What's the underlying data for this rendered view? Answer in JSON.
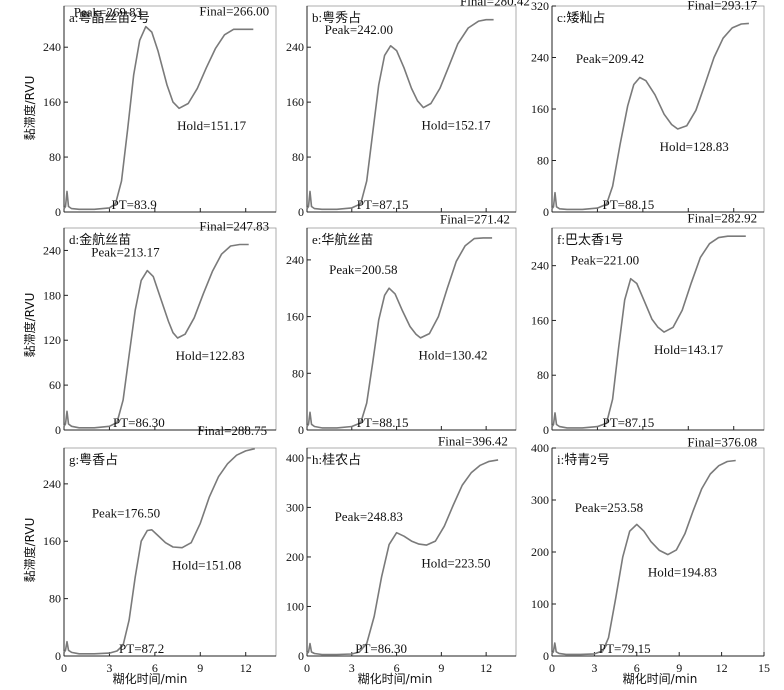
{
  "figure": {
    "ylabel": "黏滞度/RVU",
    "xlabel": "糊化时间/min",
    "x_ticks": [
      "0",
      "3",
      "6",
      "9",
      "12",
      "15"
    ],
    "line_color": "#7a7a7a"
  },
  "chart_data": [
    {
      "type": "line",
      "title": "a:粤晶丝苗2号",
      "xlim": [
        0,
        14
      ],
      "ylim": [
        0,
        300
      ],
      "yticks": [
        0,
        80,
        160,
        240
      ],
      "pt": 83.9,
      "pt_time": 3.4,
      "peak": 269.83,
      "peak_time": 5.4,
      "hold": 151.17,
      "hold_time": 7.6,
      "final": 266.0,
      "labels": {
        "peak": "Peak=269.83",
        "hold": "Hold=151.17",
        "final": "Final=266.00",
        "pt": "PT=83.9"
      },
      "x": [
        0,
        0.1,
        0.2,
        0.3,
        0.5,
        1,
        2,
        3,
        3.4,
        3.8,
        4.2,
        4.6,
        5.0,
        5.4,
        5.8,
        6.2,
        6.8,
        7.2,
        7.6,
        8.2,
        8.8,
        9.4,
        10.0,
        10.6,
        11.2,
        11.6,
        12.0,
        12.5
      ],
      "y": [
        5,
        8,
        30,
        8,
        5,
        4,
        4,
        6,
        12,
        45,
        120,
        200,
        250,
        270,
        262,
        235,
        185,
        160,
        151,
        158,
        180,
        210,
        238,
        258,
        266,
        266,
        266,
        266
      ]
    },
    {
      "type": "line",
      "title": "b:粤秀占",
      "xlim": [
        0,
        14
      ],
      "ylim": [
        0,
        300
      ],
      "yticks": [
        0,
        80,
        160,
        240
      ],
      "pt": 87.15,
      "pt_time": 3.6,
      "peak": 242.0,
      "peak_time": 5.6,
      "hold": 152.17,
      "hold_time": 7.8,
      "final": 280.42,
      "labels": {
        "peak": "Peak=242.00",
        "hold": "Hold=152.17",
        "final": "Final=280.42",
        "pt": "PT=87.15"
      },
      "x": [
        0,
        0.1,
        0.2,
        0.3,
        0.5,
        1,
        2,
        3,
        3.6,
        4.0,
        4.4,
        4.8,
        5.2,
        5.6,
        6.0,
        6.5,
        7.0,
        7.4,
        7.8,
        8.3,
        8.9,
        9.5,
        10.1,
        10.8,
        11.5,
        12.0,
        12.5
      ],
      "y": [
        5,
        8,
        30,
        8,
        5,
        4,
        4,
        6,
        12,
        45,
        115,
        185,
        228,
        242,
        235,
        210,
        180,
        162,
        152,
        158,
        180,
        212,
        245,
        268,
        278,
        280,
        280
      ]
    },
    {
      "type": "line",
      "title": "c:矮籼占",
      "xlim": [
        0,
        14
      ],
      "ylim": [
        0,
        320
      ],
      "yticks": [
        0,
        80,
        160,
        240,
        320
      ],
      "pt": 88.15,
      "pt_time": 3.6,
      "peak": 209.42,
      "peak_time": 5.8,
      "hold": 128.83,
      "hold_time": 8.3,
      "final": 293.17,
      "labels": {
        "peak": "Peak=209.42",
        "hold": "Hold=128.83",
        "final": "Final=293.17",
        "pt": "PT=88.15"
      },
      "x": [
        0,
        0.1,
        0.2,
        0.3,
        0.5,
        1,
        2,
        3,
        3.6,
        4.0,
        4.5,
        5.0,
        5.4,
        5.8,
        6.2,
        6.8,
        7.4,
        7.9,
        8.3,
        8.9,
        9.5,
        10.1,
        10.7,
        11.3,
        11.9,
        12.5,
        13.0
      ],
      "y": [
        5,
        8,
        30,
        8,
        5,
        4,
        4,
        6,
        12,
        40,
        105,
        165,
        198,
        209,
        204,
        182,
        152,
        136,
        129,
        134,
        158,
        198,
        240,
        270,
        286,
        292,
        293
      ]
    },
    {
      "type": "line",
      "title": "d:金航丝苗",
      "xlim": [
        0,
        14
      ],
      "ylim": [
        0,
        270
      ],
      "yticks": [
        0,
        60,
        120,
        180,
        240
      ],
      "pt": 86.3,
      "pt_time": 3.5,
      "peak": 213.17,
      "peak_time": 5.5,
      "hold": 122.83,
      "hold_time": 7.5,
      "final": 247.83,
      "labels": {
        "peak": "Peak=213.17",
        "hold": "Hold=122.83",
        "final": "Final=247.83",
        "pt": "PT=86.30"
      },
      "x": [
        0,
        0.1,
        0.2,
        0.3,
        0.5,
        1,
        2,
        3,
        3.5,
        3.9,
        4.3,
        4.7,
        5.1,
        5.5,
        5.9,
        6.4,
        6.9,
        7.2,
        7.5,
        8.0,
        8.6,
        9.2,
        9.8,
        10.4,
        11.0,
        11.6,
        12.2
      ],
      "y": [
        5,
        8,
        25,
        8,
        5,
        3,
        3,
        5,
        10,
        40,
        100,
        160,
        200,
        213,
        205,
        175,
        145,
        130,
        123,
        128,
        150,
        182,
        212,
        235,
        246,
        248,
        248
      ]
    },
    {
      "type": "line",
      "title": "e:华航丝苗",
      "xlim": [
        0,
        14
      ],
      "ylim": [
        0,
        285
      ],
      "yticks": [
        0,
        80,
        160,
        240
      ],
      "pt": 88.15,
      "pt_time": 3.6,
      "peak": 200.58,
      "peak_time": 5.5,
      "hold": 130.42,
      "hold_time": 7.6,
      "final": 271.42,
      "labels": {
        "peak": "Peak=200.58",
        "hold": "Hold=130.42",
        "final": "Final=271.42",
        "pt": "PT=88.15"
      },
      "x": [
        0,
        0.1,
        0.2,
        0.3,
        0.5,
        1,
        2,
        3,
        3.6,
        4.0,
        4.4,
        4.8,
        5.2,
        5.5,
        5.9,
        6.4,
        6.9,
        7.3,
        7.6,
        8.2,
        8.8,
        9.4,
        10.0,
        10.6,
        11.2,
        11.8,
        12.4
      ],
      "y": [
        5,
        8,
        25,
        8,
        5,
        3,
        3,
        5,
        10,
        38,
        95,
        155,
        190,
        200,
        192,
        168,
        146,
        135,
        130,
        136,
        160,
        200,
        238,
        260,
        270,
        271,
        271
      ]
    },
    {
      "type": "line",
      "title": "f:巴太香1号",
      "xlim": [
        0,
        14
      ],
      "ylim": [
        0,
        295
      ],
      "yticks": [
        0,
        80,
        160,
        240
      ],
      "pt": 87.15,
      "pt_time": 3.6,
      "peak": 221.0,
      "peak_time": 5.2,
      "hold": 143.17,
      "hold_time": 7.4,
      "final": 282.92,
      "labels": {
        "peak": "Peak=221.00",
        "hold": "Hold=143.17",
        "final": "Final=282.92",
        "pt": "PT=87.15"
      },
      "x": [
        0,
        0.1,
        0.2,
        0.3,
        0.5,
        1,
        2,
        3,
        3.6,
        4.0,
        4.4,
        4.8,
        5.2,
        5.6,
        6.1,
        6.6,
        7.0,
        7.4,
        8.0,
        8.6,
        9.2,
        9.8,
        10.4,
        11.0,
        11.6,
        12.2,
        12.8
      ],
      "y": [
        5,
        8,
        25,
        8,
        5,
        3,
        3,
        5,
        10,
        45,
        120,
        190,
        221,
        214,
        188,
        162,
        150,
        143,
        150,
        175,
        215,
        252,
        272,
        281,
        283,
        283,
        283
      ]
    },
    {
      "type": "line",
      "title": "g:粤香占",
      "xlim": [
        0,
        14
      ],
      "ylim": [
        0,
        290
      ],
      "yticks": [
        0,
        80,
        160,
        240
      ],
      "pt": 87.2,
      "pt_time": 3.9,
      "peak": 176.5,
      "peak_time": 5.8,
      "hold": 151.08,
      "hold_time": 7.8,
      "final": 288.75,
      "labels": {
        "peak": "Peak=176.50",
        "hold": "Hold=151.08",
        "final": "Final=288.75",
        "pt": "PT=87.2"
      },
      "x": [
        0,
        0.1,
        0.2,
        0.3,
        0.5,
        1,
        2,
        3,
        3.5,
        3.9,
        4.3,
        4.7,
        5.1,
        5.5,
        5.8,
        6.2,
        6.7,
        7.2,
        7.8,
        8.4,
        9.0,
        9.6,
        10.2,
        10.8,
        11.4,
        12.0,
        12.6
      ],
      "y": [
        5,
        8,
        20,
        8,
        5,
        3,
        3,
        4,
        7,
        15,
        50,
        110,
        160,
        175,
        176,
        168,
        158,
        152,
        151,
        158,
        185,
        222,
        250,
        268,
        280,
        286,
        289
      ]
    },
    {
      "type": "line",
      "title": "h:桂农占",
      "xlim": [
        0,
        14
      ],
      "ylim": [
        0,
        420
      ],
      "yticks": [
        0,
        100,
        200,
        300,
        400
      ],
      "pt": 86.3,
      "pt_time": 3.5,
      "peak": 248.83,
      "peak_time": 6.0,
      "hold": 223.5,
      "hold_time": 8.0,
      "final": 396.42,
      "labels": {
        "peak": "Peak=248.83",
        "hold": "Hold=223.50",
        "final": "Final=396.42",
        "pt": "PT=86.30"
      },
      "x": [
        0,
        0.1,
        0.2,
        0.3,
        0.5,
        1,
        2,
        3,
        3.5,
        4.0,
        4.5,
        5.0,
        5.5,
        6.0,
        6.5,
        7.0,
        7.5,
        8.0,
        8.6,
        9.2,
        9.8,
        10.4,
        11.0,
        11.6,
        12.2,
        12.8
      ],
      "y": [
        5,
        8,
        25,
        8,
        5,
        3,
        3,
        4,
        8,
        25,
        80,
        160,
        225,
        249,
        242,
        232,
        226,
        224,
        232,
        262,
        305,
        345,
        370,
        385,
        393,
        396
      ]
    },
    {
      "type": "line",
      "title": "i:特青2号",
      "xlim": [
        0,
        15
      ],
      "ylim": [
        0,
        400
      ],
      "yticks": [
        0,
        100,
        200,
        300,
        400
      ],
      "pt": 79.15,
      "pt_time": 3.6,
      "peak": 253.58,
      "peak_time": 6.0,
      "hold": 194.83,
      "hold_time": 8.2,
      "final": 376.08,
      "labels": {
        "peak": "Peak=253.58",
        "hold": "Hold=194.83",
        "final": "Final=376.08",
        "pt": "PT=79.15"
      },
      "x": [
        0,
        0.1,
        0.2,
        0.3,
        0.5,
        1,
        2,
        3,
        3.6,
        4.0,
        4.5,
        5.0,
        5.5,
        6.0,
        6.5,
        7.0,
        7.6,
        8.2,
        8.8,
        9.4,
        10.0,
        10.6,
        11.2,
        11.8,
        12.4,
        13.0
      ],
      "y": [
        5,
        8,
        25,
        8,
        5,
        3,
        3,
        4,
        10,
        35,
        110,
        190,
        240,
        253,
        240,
        220,
        203,
        195,
        204,
        235,
        280,
        322,
        350,
        366,
        374,
        376
      ]
    }
  ]
}
